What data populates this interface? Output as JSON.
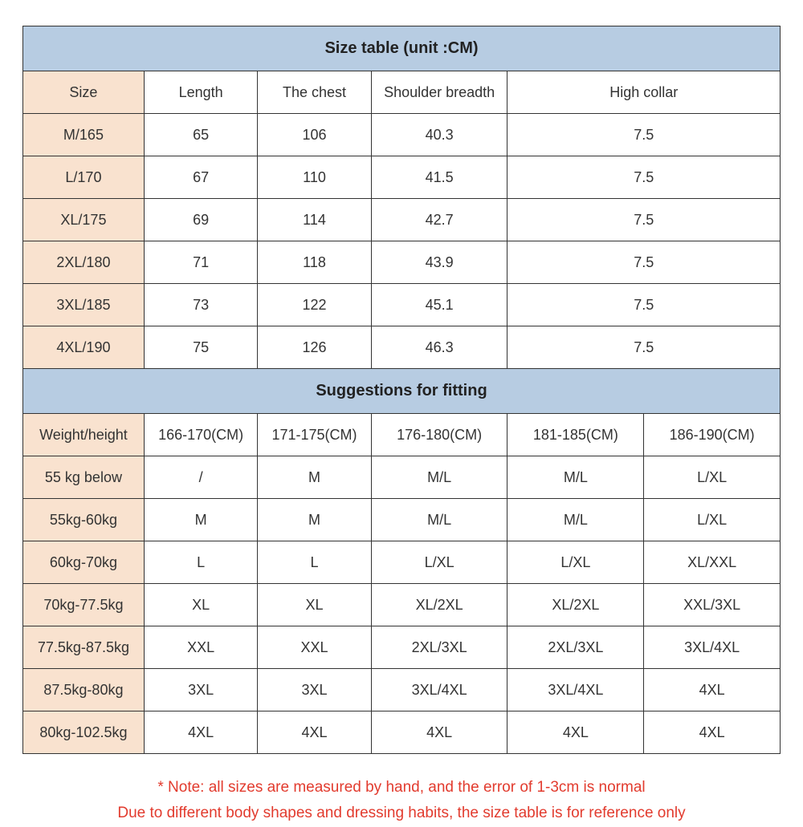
{
  "colors": {
    "headerBlue": "#B7CCE2",
    "colPeach": "#F9E2CF",
    "noteRed": "#E23B2E",
    "border": "#333333"
  },
  "sizeTable": {
    "title": "Size table (unit :CM)",
    "columns": [
      "Size",
      "Length",
      "The chest",
      "Shoulder breadth",
      "High collar"
    ],
    "rows": [
      [
        "M/165",
        "65",
        "106",
        "40.3",
        "7.5"
      ],
      [
        "L/170",
        "67",
        "110",
        "41.5",
        "7.5"
      ],
      [
        "XL/175",
        "69",
        "114",
        "42.7",
        "7.5"
      ],
      [
        "2XL/180",
        "71",
        "118",
        "43.9",
        "7.5"
      ],
      [
        "3XL/185",
        "73",
        "122",
        "45.1",
        "7.5"
      ],
      [
        "4XL/190",
        "75",
        "126",
        "46.3",
        "7.5"
      ]
    ]
  },
  "fitTable": {
    "title": "Suggestions for fitting",
    "columns": [
      "Weight/height",
      "166-170(CM)",
      "171-175(CM)",
      "176-180(CM)",
      "181-185(CM)",
      "186-190(CM)"
    ],
    "rows": [
      [
        "55 kg below",
        "/",
        "M",
        "M/L",
        "M/L",
        "L/XL"
      ],
      [
        "55kg-60kg",
        "M",
        "M",
        "M/L",
        "M/L",
        "L/XL"
      ],
      [
        "60kg-70kg",
        "L",
        "L",
        "L/XL",
        "L/XL",
        "XL/XXL"
      ],
      [
        "70kg-77.5kg",
        "XL",
        "XL",
        "XL/2XL",
        "XL/2XL",
        "XXL/3XL"
      ],
      [
        "77.5kg-87.5kg",
        "XXL",
        "XXL",
        "2XL/3XL",
        "2XL/3XL",
        "3XL/4XL"
      ],
      [
        "87.5kg-80kg",
        "3XL",
        "3XL",
        "3XL/4XL",
        "3XL/4XL",
        "4XL"
      ],
      [
        "80kg-102.5kg",
        "4XL",
        "4XL",
        "4XL",
        "4XL",
        "4XL"
      ]
    ]
  },
  "note": {
    "line1": "* Note: all sizes are measured by hand, and the error of 1-3cm is normal",
    "line2": "Due to different body shapes and dressing habits, the size table is for reference only"
  }
}
